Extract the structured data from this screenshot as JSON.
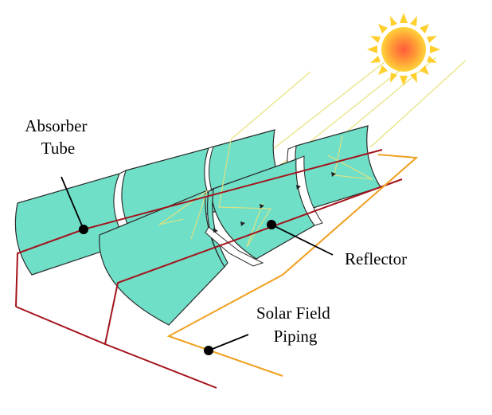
{
  "labels": {
    "absorber_tube": [
      "Absorber",
      "Tube"
    ],
    "reflector": "Reflector",
    "solar_field_piping": [
      "Solar Field",
      "Piping"
    ]
  },
  "colors": {
    "mirror_fill": "#6fdfc8",
    "mirror_stroke": "#2b2b2b",
    "absorber_tube": "#a3141c",
    "field_piping": "#f0a020",
    "sun_rays": "#e8e47a",
    "sun_core": "#ff7a3a",
    "sun_outer": "#ffd23a"
  },
  "icons": {
    "sun": "sun-icon"
  }
}
